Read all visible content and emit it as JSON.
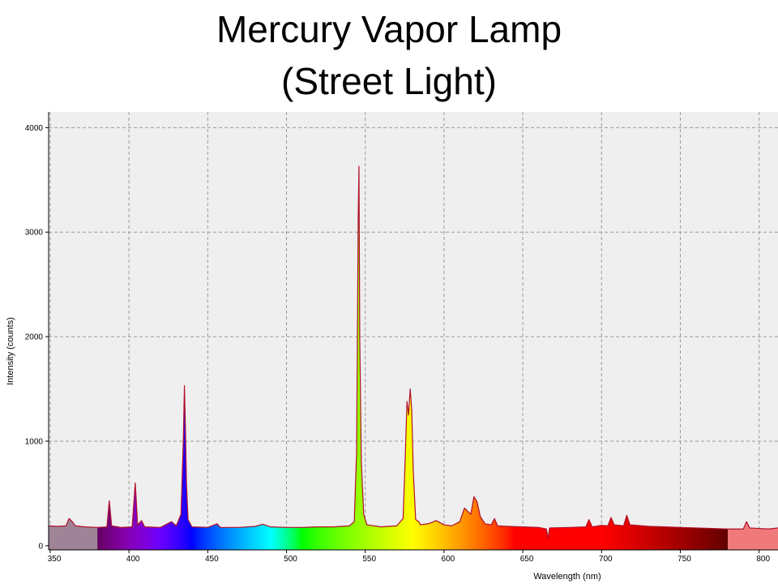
{
  "chart_data": {
    "type": "line",
    "title": [
      "Mercury Vapor Lamp",
      "(Street Light)"
    ],
    "x_label": "Wavelength (nm)",
    "y_label": "Intensity (counts)",
    "x": [
      349,
      355,
      360,
      362,
      364,
      366,
      372,
      380,
      386,
      387.5,
      389,
      395,
      402,
      404,
      405.5,
      408,
      410,
      420,
      427,
      430,
      433,
      434.5,
      435.2,
      435.8,
      436.5,
      437.5,
      440,
      450,
      456,
      458,
      470,
      480,
      485,
      490,
      500,
      510,
      520,
      530,
      540,
      543,
      544.5,
      545.5,
      546,
      546.5,
      547.5,
      549,
      551,
      560,
      570,
      574,
      575.5,
      576.5,
      577.5,
      578.5,
      579.5,
      580.5,
      582,
      584,
      585,
      590,
      595,
      600,
      605,
      610,
      613,
      615,
      617,
      619,
      621,
      623,
      626,
      630,
      632,
      634,
      640,
      650,
      660,
      665,
      666,
      667,
      680,
      690,
      692,
      694,
      700,
      704,
      706,
      708,
      714,
      716,
      718,
      730,
      740,
      750,
      760,
      770,
      780,
      790,
      792,
      794,
      800,
      806,
      812
    ],
    "series": [
      {
        "name": "Intensity",
        "color": "#b0102a",
        "values": [
          190,
          185,
          190,
          260,
          230,
          190,
          180,
          175,
          180,
          430,
          190,
          175,
          180,
          600,
          200,
          240,
          180,
          175,
          230,
          190,
          300,
          1000,
          1530,
          1150,
          600,
          250,
          180,
          175,
          210,
          175,
          175,
          185,
          205,
          180,
          175,
          175,
          180,
          180,
          190,
          230,
          900,
          3120,
          3630,
          2000,
          800,
          300,
          200,
          180,
          190,
          260,
          900,
          1380,
          1250,
          1500,
          1300,
          700,
          250,
          230,
          200,
          210,
          240,
          200,
          190,
          230,
          360,
          330,
          300,
          470,
          420,
          280,
          210,
          200,
          260,
          190,
          185,
          180,
          175,
          160,
          70,
          170,
          175,
          180,
          250,
          180,
          195,
          190,
          270,
          200,
          190,
          290,
          200,
          185,
          180,
          175,
          170,
          165,
          160,
          160,
          230,
          170,
          165,
          160,
          170
        ]
      }
    ],
    "xlim": [
      349,
      812
    ],
    "ylim": [
      -40,
      4150
    ],
    "xticks": [
      350,
      400,
      450,
      500,
      550,
      600,
      650,
      700,
      750,
      800
    ],
    "yticks": [
      0,
      1000,
      2000,
      3000,
      4000
    ],
    "grid": true
  }
}
